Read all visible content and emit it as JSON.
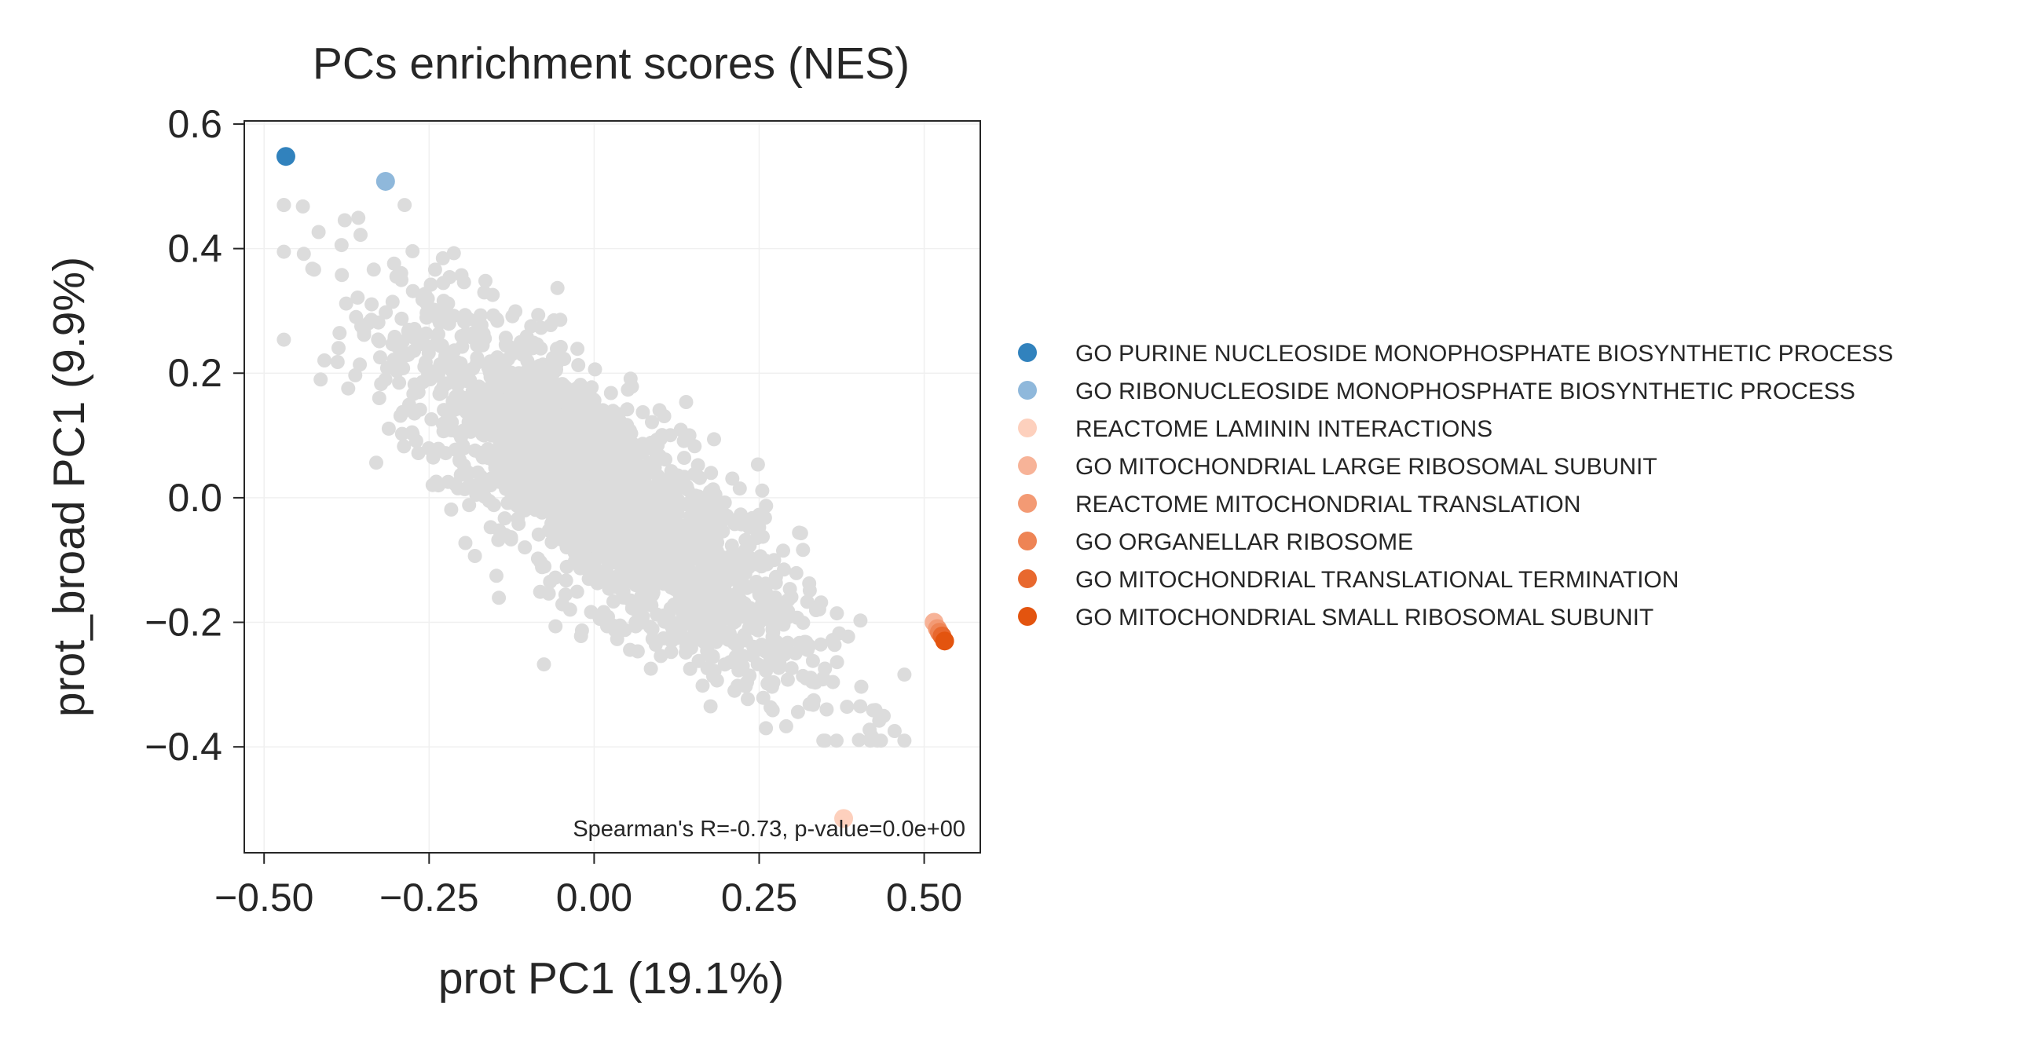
{
  "chart_data": {
    "type": "scatter",
    "title": "PCs enrichment scores (NES)",
    "xlabel": "prot PC1 (19.1%)",
    "ylabel": "prot_broad PC1 (9.9%)",
    "xlim": [
      -0.53,
      0.585
    ],
    "ylim": [
      -0.57,
      0.605
    ],
    "xticks": [
      -0.5,
      -0.25,
      0.0,
      0.25,
      0.5
    ],
    "xtick_labels": [
      "−0.50",
      "−0.25",
      "0.00",
      "0.25",
      "0.50"
    ],
    "yticks": [
      -0.4,
      -0.2,
      0.0,
      0.2,
      0.4,
      0.6
    ],
    "ytick_labels": [
      "−0.4",
      "−0.2",
      "0.0",
      "0.2",
      "0.4",
      "0.6"
    ],
    "grid": true,
    "legend_position": "right",
    "annotation": "Spearman's R=-0.73, p-value=0.0e+00",
    "background": {
      "name": "other gene sets",
      "color": "#dcdcdc",
      "n_points": 2200,
      "spearman_r": -0.73,
      "x_range": [
        -0.48,
        0.48
      ],
      "y_range": [
        -0.39,
        0.47
      ]
    },
    "series": [
      {
        "name": "GO PURINE NUCLEOSIDE MONOPHOSPHATE BIOSYNTHETIC PROCESS",
        "color": "#3182bd",
        "x": -0.467,
        "y": 0.548
      },
      {
        "name": "GO RIBONUCLEOSIDE MONOPHOSPHATE BIOSYNTHETIC PROCESS",
        "color": "#8fb8db",
        "x": -0.316,
        "y": 0.508
      },
      {
        "name": "REACTOME LAMININ INTERACTIONS",
        "color": "#fdd0bd",
        "x": 0.378,
        "y": -0.515
      },
      {
        "name": "GO MITOCHONDRIAL LARGE RIBOSOMAL SUBUNIT",
        "color": "#f7b398",
        "x": 0.515,
        "y": -0.2
      },
      {
        "name": "REACTOME MITOCHONDRIAL TRANSLATION",
        "color": "#f39a74",
        "x": 0.52,
        "y": -0.21
      },
      {
        "name": "GO ORGANELLAR RIBOSOME",
        "color": "#ee8455",
        "x": 0.523,
        "y": -0.216
      },
      {
        "name": "GO MITOCHONDRIAL TRANSLATIONAL TERMINATION",
        "color": "#e8682e",
        "x": 0.527,
        "y": -0.222
      },
      {
        "name": "GO MITOCHONDRIAL SMALL RIBOSOMAL SUBUNIT",
        "color": "#e3540f",
        "x": 0.531,
        "y": -0.23
      }
    ]
  }
}
